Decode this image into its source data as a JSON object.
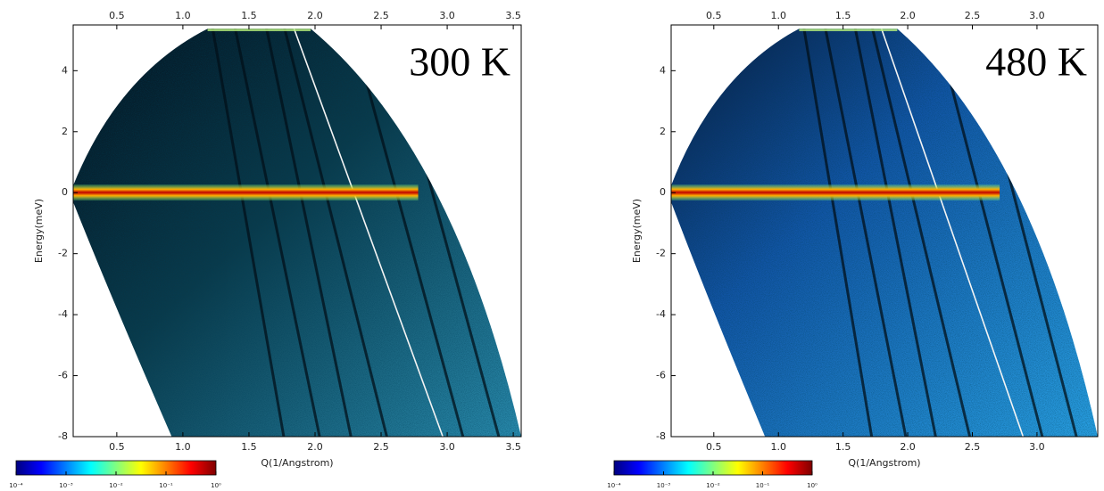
{
  "chart_data": [
    {
      "type": "heatmap",
      "annotation": "300 K",
      "xlabel": "Q(1/Angstrom)",
      "ylabel": "Energy(meV)",
      "xlim": [
        0.17,
        3.56
      ],
      "ylim": [
        -8,
        5.5
      ],
      "xticks": [
        0.5,
        {
          "value": 1,
          "label": "1.0"
        },
        1.5,
        {
          "value": 2,
          "label": "2.0"
        },
        2.5,
        {
          "value": 3,
          "label": "3.0"
        },
        3.5
      ],
      "yticks": [
        -8,
        -6,
        -4,
        -2,
        0,
        2,
        4
      ],
      "colormap": "jet",
      "colorbar_log_scale": true,
      "clim": [
        0.0001,
        1
      ],
      "colorbar_ticks": [
        {
          "value": 0.0001,
          "label": "10⁻⁴"
        },
        {
          "value": 0.001,
          "label": "10⁻³"
        },
        {
          "value": 0.01,
          "label": "10⁻²"
        },
        {
          "value": 0.1,
          "label": "10⁻¹"
        },
        {
          "value": 1,
          "label": "10⁰"
        }
      ]
    },
    {
      "type": "heatmap",
      "annotation": "480 K",
      "xlabel": "Q(1/Angstrom)",
      "ylabel": "Energy(meV)",
      "xlim": [
        0.17,
        3.47
      ],
      "ylim": [
        -8,
        5.5
      ],
      "xticks": [
        0.5,
        {
          "value": 1,
          "label": "1.0"
        },
        1.5,
        {
          "value": 2,
          "label": "2.0"
        },
        2.5,
        {
          "value": 3,
          "label": "3.0"
        }
      ],
      "yticks": [
        -8,
        -6,
        -4,
        -2,
        0,
        2,
        4
      ],
      "colormap": "jet",
      "colorbar_log_scale": true,
      "clim": [
        0.0001,
        1
      ],
      "colorbar_ticks": [
        {
          "value": 0.0001,
          "label": "10⁻⁴"
        },
        {
          "value": 0.001,
          "label": "10⁻³"
        },
        {
          "value": 0.01,
          "label": "10⁻²"
        },
        {
          "value": 0.1,
          "label": "10⁻¹"
        },
        {
          "value": 1,
          "label": "10⁰"
        }
      ]
    }
  ]
}
